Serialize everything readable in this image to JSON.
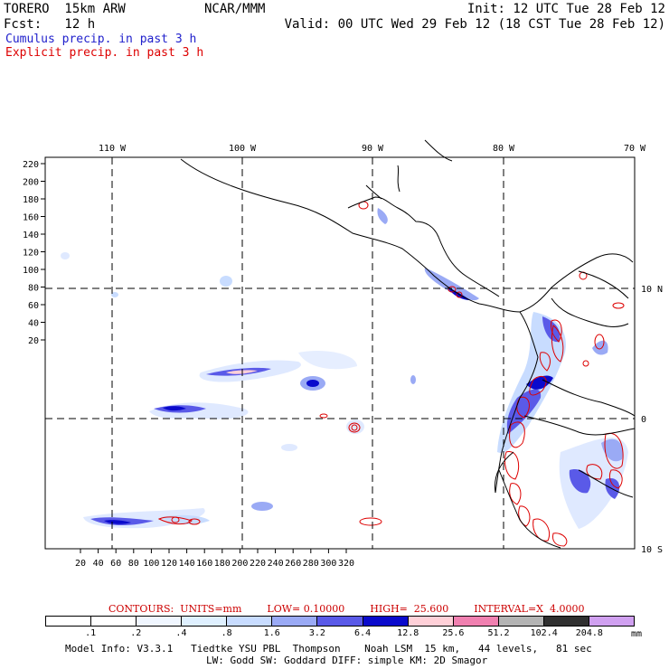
{
  "header": {
    "model": "TORERO  15km ARW",
    "org": "NCAR/MMM",
    "init": "Init: 12 UTC Tue 28 Feb 12",
    "fcst": "Fcst:   12 h",
    "valid": "Valid: 00 UTC Wed 29 Feb 12 (18 CST Tue 28 Feb 12)"
  },
  "legend": {
    "cumulus": "Cumulus precip. in past 3 h",
    "explicit": "Explicit precip. in past 3 h"
  },
  "map": {
    "top_lon_labels": [
      "110 W",
      "100 W",
      "90 W",
      "80 W",
      "70 W"
    ],
    "right_lat_labels": [
      "10 N",
      "0",
      "10 S"
    ],
    "y_ticks": [
      "220",
      "200",
      "180",
      "160",
      "140",
      "120",
      "100",
      "80",
      "60",
      "40",
      "20"
    ],
    "x_ticks": [
      "20",
      "40",
      "60",
      "80",
      "100",
      "120",
      "140",
      "160",
      "180",
      "200",
      "220",
      "240",
      "260",
      "280",
      "300",
      "320"
    ]
  },
  "contours": {
    "units": "CONTOURS:  UNITS=mm",
    "low": "LOW= 0.10000",
    "high": "HIGH=  25.600",
    "interval": "INTERVAL=X  4.0000"
  },
  "colorbar": {
    "labels": [
      ".1",
      ".2",
      ".4",
      ".8",
      "1.6",
      "3.2",
      "6.4",
      "12.8",
      "25.6",
      "51.2",
      "102.4",
      "204.8"
    ],
    "unit": "mm",
    "colors": [
      "#ffffff",
      "#ffffff",
      "#f0f6ff",
      "#dff0ff",
      "#c8dcff",
      "#9aaaf5",
      "#5a5ae8",
      "#0a0acc",
      "#ffd0d8",
      "#f080b0",
      "#b4b4b4",
      "#303030",
      "#d0a0f0"
    ]
  },
  "footer": {
    "line1": "Model Info: V3.3.1   Tiedtke YSU PBL  Thompson    Noah LSM  15 km,   44 levels,   81 sec",
    "line2": "LW: Godd SW: Goddard DIFF: simple KM: 2D Smagor"
  }
}
